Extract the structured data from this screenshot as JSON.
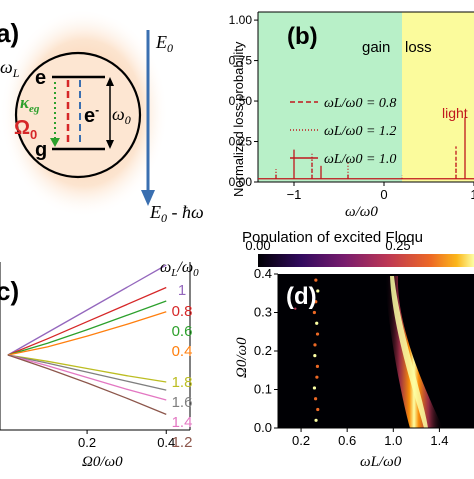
{
  "panel_a": {
    "label": "a)",
    "omega_L": "ω",
    "omega_L_sub": "L",
    "state_e": "e",
    "state_g": "g",
    "kappa": "κ",
    "kappa_sub": "eg",
    "Omega0": "Ω",
    "Omega0_sub": "0",
    "electron": "e",
    "electron_sup": "-",
    "omega0": "ω",
    "omega0_sub": "0",
    "E0": "E",
    "E0_sub": "0",
    "E0_minus": "E",
    "E0_minus_sub": "0",
    "E0_minus_tail": " - ħω",
    "colors": {
      "glow": "#f6b07a",
      "arrow": "#3a6fb0",
      "red": "#d62728",
      "green": "#2ca02c"
    }
  },
  "panel_b": {
    "label": "(b)",
    "region_gain": "gain",
    "region_loss": "loss",
    "light_label": "light",
    "colors": {
      "gain_bg": "#b8f0c8",
      "loss_bg": "#fbfb9c",
      "line": "#c0171d"
    }
  },
  "panel_c": {
    "label": "c)",
    "legend_title": "ω",
    "legend_title_sub": "L",
    "legend_title_tail": "/ω",
    "legend_title_tail_sub": "0",
    "entries": [
      {
        "label": "1",
        "color": "#9467bd"
      },
      {
        "label": "0.8",
        "color": "#d62728"
      },
      {
        "label": "0.6",
        "color": "#2ca02c"
      },
      {
        "label": "0.4",
        "color": "#ff7f0e"
      },
      {
        "label": "1.8",
        "color": "#bcbd22"
      },
      {
        "label": "1.6",
        "color": "#7f7f7f"
      },
      {
        "label": "1.4",
        "color": "#e377c2"
      },
      {
        "label": "1.2",
        "color": "#8c564b"
      }
    ]
  },
  "panel_d": {
    "label": "(d)",
    "colorbar_title": "Population of excited Floqu",
    "colorbar_ticks": [
      "0.00",
      "0.25"
    ]
  },
  "chart_data": [
    {
      "type": "line",
      "panel": "b",
      "xlabel": "ω/ω0",
      "ylabel": "Normalized loss probability",
      "xlim": [
        -1.4,
        1.0
      ],
      "ylim": [
        0,
        1.05
      ],
      "xticks": [
        "−1",
        "0",
        "1"
      ],
      "yticks": [
        "0.00",
        "0.25",
        "0.50",
        "0.75",
        "1.00"
      ],
      "grid": false,
      "legend_position": "center-left",
      "series": [
        {
          "name": "ωL/ω0 = 0.8",
          "style": "dashed",
          "x": [
            -1.2,
            -0.8,
            -0.4,
            0.8
          ],
          "y": [
            0.06,
            0.14,
            0.05,
            0.22
          ]
        },
        {
          "name": "ωL/ω0 = 1.2",
          "style": "dotted",
          "x": [
            -1.2,
            -0.8,
            -0.4,
            0.2,
            0.8
          ],
          "y": [
            0.08,
            0.18,
            0.12,
            0.04,
            0.12
          ]
        },
        {
          "name": "ωL/ω0 = 1.0",
          "style": "solid",
          "x": [
            -1.0,
            -0.7,
            0.9
          ],
          "y": [
            0.2,
            0.1,
            0.4
          ]
        }
      ]
    },
    {
      "type": "line",
      "panel": "c",
      "xlabel": "Ω0/ω0",
      "ylabel": "",
      "xlim": [
        -0.02,
        0.46
      ],
      "xticks": [
        "0.2",
        "0.4"
      ],
      "grid": false,
      "legend_position": "right",
      "x": [
        0,
        0.1,
        0.2,
        0.3,
        0.4
      ],
      "series": [
        {
          "name": "1",
          "values": [
            0,
            0.25,
            0.5,
            0.75,
            1.0
          ]
        },
        {
          "name": "0.8",
          "values": [
            0,
            0.18,
            0.37,
            0.56,
            0.75
          ]
        },
        {
          "name": "0.6",
          "values": [
            0,
            0.13,
            0.28,
            0.44,
            0.6
          ]
        },
        {
          "name": "0.4",
          "values": [
            0,
            0.09,
            0.21,
            0.34,
            0.48
          ]
        },
        {
          "name": "1.8",
          "values": [
            0,
            -0.07,
            -0.15,
            -0.23,
            -0.3
          ]
        },
        {
          "name": "1.6",
          "values": [
            0,
            -0.09,
            -0.19,
            -0.29,
            -0.39
          ]
        },
        {
          "name": "1.4",
          "values": [
            0,
            -0.12,
            -0.25,
            -0.38,
            -0.5
          ]
        },
        {
          "name": "1.2",
          "values": [
            0,
            -0.15,
            -0.31,
            -0.48,
            -0.66
          ]
        }
      ]
    },
    {
      "type": "heatmap",
      "panel": "d",
      "xlabel": "ωL/ω0",
      "ylabel": "Ω0/ω0",
      "xlim": [
        0.0,
        1.7
      ],
      "ylim": [
        0,
        0.4
      ],
      "xticks": [
        "0.2",
        "0.6",
        "1.0",
        "1.4"
      ],
      "yticks": [
        "0.0",
        "0.1",
        "0.2",
        "0.3",
        "0.4"
      ],
      "colormap": "inferno",
      "resonance_center": 1.0
    }
  ]
}
